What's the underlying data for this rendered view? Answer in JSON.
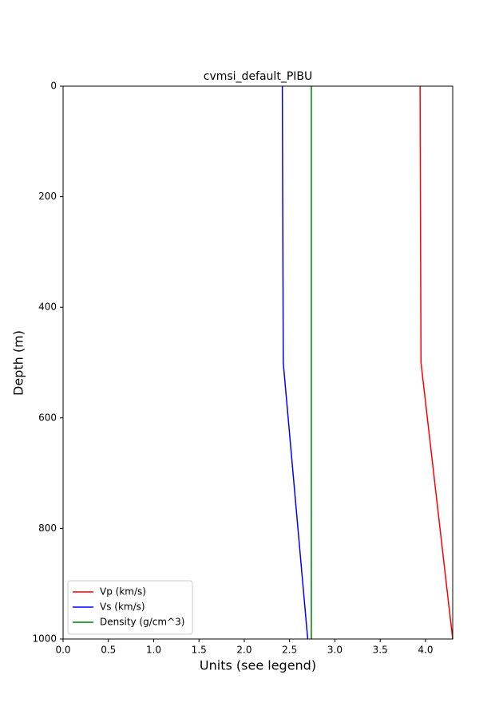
{
  "chart_data": {
    "type": "line",
    "title": "cvmsi_default_PIBU",
    "x_label": "Units (see legend)",
    "y_label": "Depth (m)",
    "y": [
      0,
      500,
      1000
    ],
    "series": [
      {
        "name": "Vp (km/s)",
        "color": "#ff0000",
        "values": [
          3.94,
          3.95,
          4.3
        ]
      },
      {
        "name": "Vs (km/s)",
        "color": "#0000ff",
        "values": [
          2.42,
          2.43,
          2.7
        ]
      },
      {
        "name": "Density (g/cm^3)",
        "color": "#008000",
        "values": [
          2.74,
          2.74,
          2.74
        ]
      }
    ],
    "xlim": [
      0,
      4.3
    ],
    "ylim": [
      1000,
      0
    ],
    "xticks": [
      {
        "value": 0,
        "label": "0.0"
      },
      0.5,
      {
        "value": 1,
        "label": "1.0"
      },
      1.5,
      {
        "value": 2,
        "label": "2.0"
      },
      2.5,
      {
        "value": 3,
        "label": "3.0"
      },
      3.5,
      {
        "value": 4,
        "label": "4.0"
      }
    ],
    "yticks": [
      0,
      200,
      400,
      600,
      800,
      1000
    ],
    "grid": false,
    "legend": "lower left"
  }
}
